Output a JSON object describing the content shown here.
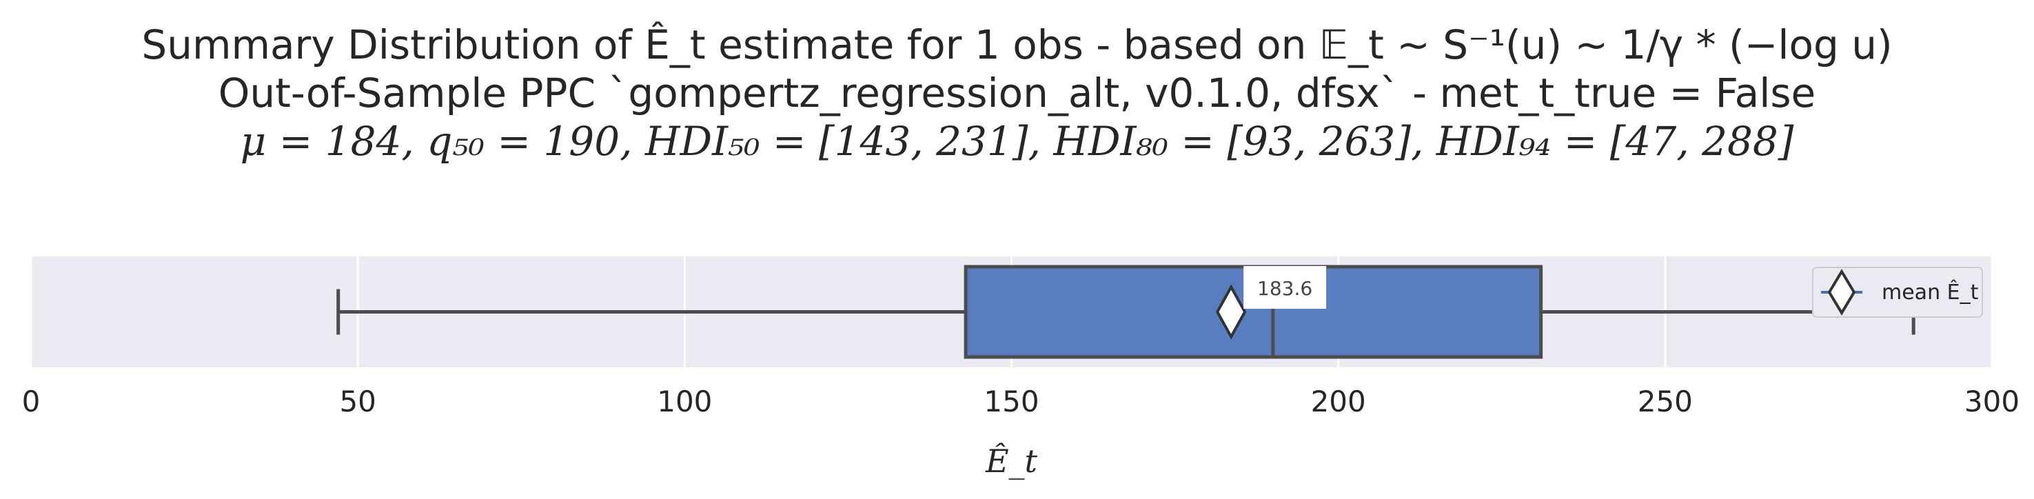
{
  "title": {
    "line1": "Summary Distribution of Ê_t estimate for 1 obs - based on 𝔼_t ~ S⁻¹(u) ~ 1/γ * (−log u)",
    "line2": "Out-of-Sample PPC `gompertz_regression_alt, v0.1.0, dfsx` - met_t_true = False",
    "line3": "μ = 184, q₅₀ = 190, HDI₅₀ = [143, 231], HDI₈₀ = [93, 263], HDI₉₄ = [47, 288]"
  },
  "chart_data": {
    "type": "box",
    "orientation": "horizontal",
    "xlabel": "Ê_t",
    "xlim": [
      0,
      300
    ],
    "xticks": [
      0,
      50,
      100,
      150,
      200,
      250,
      300
    ],
    "grid": true,
    "box": {
      "whisker_low": 47,
      "q1": 143,
      "median": 190,
      "q3": 231,
      "whisker_high": 288,
      "mean": 183.6
    },
    "annotation": "183.6",
    "legend": {
      "label": "mean Ê_t",
      "placement": "right"
    },
    "colors": {
      "plot_bg": "#eaeaf2",
      "box_fill": "#5a7dc1",
      "line": "#4d4d4d",
      "grid": "#ffffff",
      "legend_line": "#4c72b0"
    }
  }
}
